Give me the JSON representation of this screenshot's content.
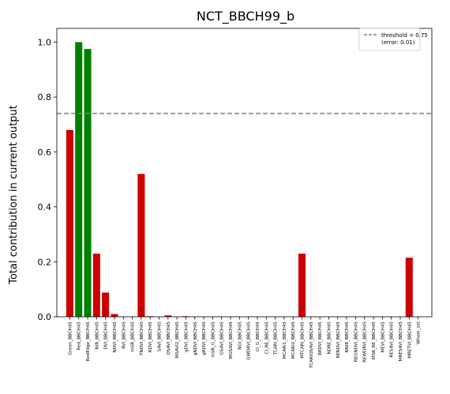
{
  "chart_data": {
    "type": "bar",
    "title": "NCT_BBCH99_b",
    "xlabel": "",
    "ylabel": "Total contribution in current output",
    "ylim": [
      0,
      1.05
    ],
    "yticks": [
      "0.0",
      "0.2",
      "0.4",
      "0.6",
      "0.8",
      "1.0"
    ],
    "grid": false,
    "legend_position": "top-right",
    "threshold": {
      "value": 0.74,
      "label_line1": "threshold = 0.75",
      "label_line2": "(error: 0.01)",
      "color": "#808080"
    },
    "colors": {
      "below": "#cc0000",
      "above": "#008000"
    },
    "categories": [
      "Green_BBCH45",
      "Red_BBCH45",
      "RedEdge_BBCH45",
      "NIR_BBCH45",
      "DVI_BBCH45",
      "NDVI_BBCH45",
      "RVI_BBCH45",
      "mSR_BBCH45",
      "TNDVI_BBCH45",
      "RDVI_BBCH45",
      "SAVI_BBCH45",
      "OSAVI_BBCH45",
      "MSAVI2_BBCH45",
      "gDVI_BBCH45",
      "gNDVI_BBCH45",
      "gRDVI_BBCH45",
      "mSR_G_BBCH45",
      "GSAVI_BBCH45",
      "MGSAVI_BBCH45",
      "NGI_BBCH45",
      "GWDRVI_BBCH45",
      "CI_G_BBCH45",
      "CI_RE_BBCH45",
      "TCARI_BBCH45",
      "MCARI1_BBCH45",
      "MCARI2_BBCH45",
      "MTCARI_BBCH45",
      "TCARIOSAVI_BBCH45",
      "REDVI_BBCH45",
      "NDRE_BBCH45",
      "RERDVI_BBCH45",
      "NNIR_BBCH45",
      "REGNDVI_BBCH45",
      "REWDRVI_BBCH45",
      "MSR_RE_BBCH45",
      "MEVI_BBCH45",
      "RESAVI_BBCH45",
      "MRESAVI_BBCH45",
      "MRETVI_BBCH45",
      "Whole_set"
    ],
    "values": [
      0.68,
      1.0,
      0.975,
      0.23,
      0.088,
      0.01,
      0,
      0,
      0.52,
      0.002,
      0,
      0.005,
      0,
      0.002,
      0,
      0,
      0,
      0,
      0,
      0,
      0,
      0,
      0,
      0,
      0,
      0,
      0.23,
      0,
      0,
      0,
      0,
      0,
      0,
      0,
      0,
      0,
      0,
      0,
      0.215,
      0
    ]
  }
}
